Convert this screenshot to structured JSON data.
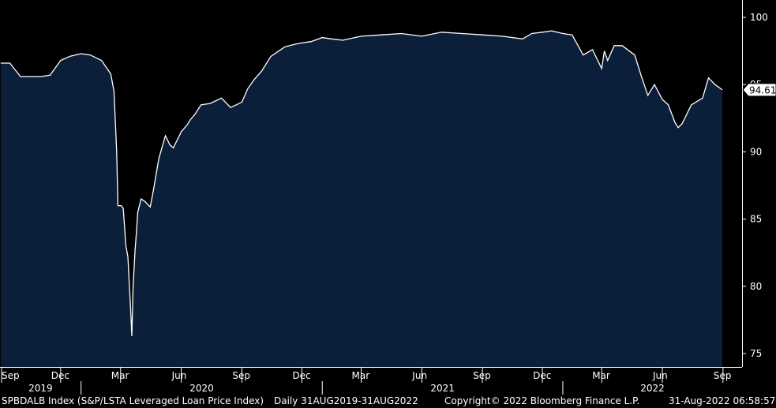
{
  "chart_data": {
    "type": "area",
    "ylim": [
      74,
      101
    ],
    "y_ticks": [
      75,
      80,
      85,
      90,
      95,
      100
    ],
    "last_value_label": "94.61",
    "months": [
      "Sep",
      "Dec",
      "Mar",
      "Jun",
      "Sep",
      "Dec",
      "Mar",
      "Jun",
      "Sep",
      "Dec",
      "Mar",
      "Jun",
      "Sep"
    ],
    "years": [
      "2019",
      "2020",
      "2021",
      "2022"
    ],
    "x": [
      "2019-09-01",
      "2019-09-15",
      "2019-10-01",
      "2019-10-15",
      "2019-11-01",
      "2019-11-15",
      "2019-12-01",
      "2019-12-15",
      "2020-01-01",
      "2020-01-15",
      "2020-02-01",
      "2020-02-15",
      "2020-02-20",
      "2020-02-24",
      "2020-02-26",
      "2020-02-28",
      "2020-03-02",
      "2020-03-05",
      "2020-03-09",
      "2020-03-12",
      "2020-03-16",
      "2020-03-18",
      "2020-03-20",
      "2020-03-23",
      "2020-03-25",
      "2020-03-27",
      "2020-04-01",
      "2020-04-07",
      "2020-04-15",
      "2020-04-20",
      "2020-04-28",
      "2020-05-08",
      "2020-05-15",
      "2020-05-20",
      "2020-06-01",
      "2020-06-10",
      "2020-06-15",
      "2020-06-22",
      "2020-07-01",
      "2020-07-15",
      "2020-08-01",
      "2020-08-15",
      "2020-09-01",
      "2020-09-10",
      "2020-09-20",
      "2020-10-01",
      "2020-10-15",
      "2020-10-30",
      "2020-11-05",
      "2020-11-20",
      "2020-12-01",
      "2020-12-15",
      "2021-01-01",
      "2021-01-15",
      "2021-02-01",
      "2021-03-01",
      "2021-04-01",
      "2021-05-01",
      "2021-06-01",
      "2021-07-01",
      "2021-08-01",
      "2021-09-01",
      "2021-10-01",
      "2021-11-01",
      "2021-11-15",
      "2021-12-01",
      "2021-12-15",
      "2022-01-01",
      "2022-01-15",
      "2022-02-01",
      "2022-02-15",
      "2022-03-01",
      "2022-03-05",
      "2022-03-10",
      "2022-03-20",
      "2022-04-01",
      "2022-04-20",
      "2022-05-01",
      "2022-05-10",
      "2022-05-20",
      "2022-06-01",
      "2022-06-10",
      "2022-06-20",
      "2022-06-25",
      "2022-07-01",
      "2022-07-15",
      "2022-08-01",
      "2022-08-10",
      "2022-08-20",
      "2022-08-31"
    ],
    "y": [
      96.6,
      96.6,
      95.6,
      95.6,
      95.6,
      95.7,
      96.8,
      97.1,
      97.3,
      97.2,
      96.8,
      95.8,
      94.5,
      90.0,
      86.0,
      86.0,
      86.0,
      85.8,
      83.0,
      82.2,
      78.5,
      76.3,
      80.0,
      82.7,
      84.0,
      85.5,
      86.5,
      86.3,
      85.9,
      87.2,
      89.5,
      91.2,
      90.5,
      90.3,
      91.5,
      92.0,
      92.4,
      92.8,
      93.5,
      93.6,
      94.0,
      93.3,
      93.7,
      94.7,
      95.4,
      96.0,
      97.1,
      97.6,
      97.8,
      98.0,
      98.1,
      98.2,
      98.5,
      98.4,
      98.3,
      98.6,
      98.7,
      98.8,
      98.6,
      98.9,
      98.8,
      98.7,
      98.6,
      98.4,
      98.8,
      98.9,
      99.0,
      98.8,
      98.7,
      97.2,
      97.6,
      96.2,
      97.5,
      96.8,
      97.9,
      97.9,
      97.2,
      95.5,
      94.2,
      95.0,
      93.9,
      93.5,
      92.2,
      91.8,
      92.1,
      93.5,
      94.0,
      95.5,
      95.0,
      94.61
    ]
  },
  "footer": {
    "index_name": "SPBDALB Index (S&P/LSTA Leveraged Loan Price Index)",
    "period": "Daily 31AUG2019-31AUG2022",
    "copyright": "Copyright© 2022 Bloomberg Finance L.P.",
    "timestamp": "31-Aug-2022 06:58:57"
  },
  "colors": {
    "area_fill": "#0b1f3a",
    "line": "#ffffff",
    "background": "#000000"
  }
}
